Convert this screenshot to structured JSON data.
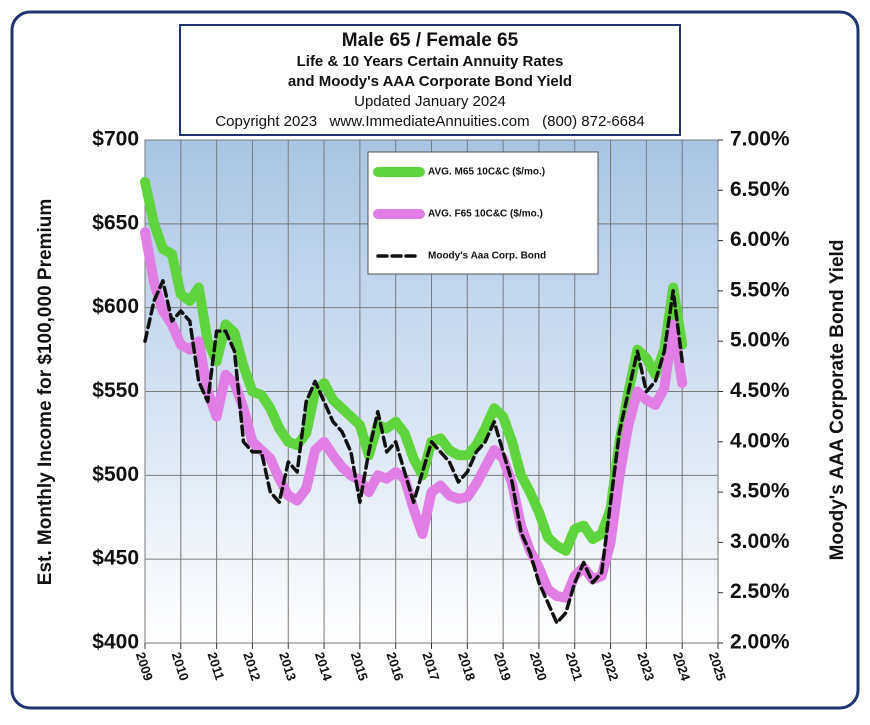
{
  "chart_data": {
    "type": "line",
    "title": "Male 65 / Female 65",
    "subtitle": [
      "Life & 10 Years Certain Annuity Rates",
      "and Moody's AAA Corporate Bond Yield",
      "Updated January 2024"
    ],
    "copyright": "Copyright 2023   www.ImmediateAnnuities.com   (800) 872-6684",
    "ylabel": "Est. Monthly Income for $100,000 Premium",
    "y2label": "Moody's AAA Corporate Bond Yield",
    "xlim": [
      2009,
      2025
    ],
    "xticks": [
      2009,
      2010,
      2011,
      2012,
      2013,
      2014,
      2015,
      2016,
      2017,
      2018,
      2019,
      2020,
      2021,
      2022,
      2023,
      2024,
      2025
    ],
    "ylim": [
      400,
      700
    ],
    "yticks": [
      {
        "value": 400,
        "label": "$400"
      },
      {
        "value": 450,
        "label": "$450"
      },
      {
        "value": 500,
        "label": "$500"
      },
      {
        "value": 550,
        "label": "$550"
      },
      {
        "value": 600,
        "label": "$600"
      },
      {
        "value": 650,
        "label": "$650"
      },
      {
        "value": 700,
        "label": "$700"
      }
    ],
    "y2lim": [
      2,
      7
    ],
    "y2ticks": [
      {
        "value": 2,
        "label": "2.00%"
      },
      {
        "value": 2.5,
        "label": "2.50%"
      },
      {
        "value": 3,
        "label": "3.00%"
      },
      {
        "value": 3.5,
        "label": "3.50%"
      },
      {
        "value": 4,
        "label": "4.00%"
      },
      {
        "value": 4.5,
        "label": "4.50%"
      },
      {
        "value": 5,
        "label": "5.00%"
      },
      {
        "value": 5.5,
        "label": "5.50%"
      },
      {
        "value": 6,
        "label": "6.00%"
      },
      {
        "value": 6.5,
        "label": "6.50%"
      },
      {
        "value": 7,
        "label": "7.00%"
      }
    ],
    "grid": true,
    "legend": "top",
    "x": [
      2009,
      2009.25,
      2009.5,
      2009.75,
      2010,
      2010.25,
      2010.5,
      2010.75,
      2011,
      2011.25,
      2011.5,
      2011.75,
      2012,
      2012.25,
      2012.5,
      2012.75,
      2013,
      2013.25,
      2013.5,
      2013.75,
      2014,
      2014.25,
      2014.5,
      2014.75,
      2015,
      2015.25,
      2015.5,
      2015.75,
      2016,
      2016.25,
      2016.5,
      2016.75,
      2017,
      2017.25,
      2017.5,
      2017.75,
      2018,
      2018.25,
      2018.5,
      2018.75,
      2019,
      2019.25,
      2019.5,
      2019.75,
      2020,
      2020.25,
      2020.5,
      2020.75,
      2021,
      2021.25,
      2021.5,
      2021.75,
      2022,
      2022.25,
      2022.5,
      2022.75,
      2023,
      2023.25,
      2023.5,
      2023.75,
      2024
    ],
    "series": [
      {
        "name": "AVG. M65 10C&C ($/mo.)",
        "color": "#5fd43c",
        "width": 10,
        "values": [
          675,
          650,
          635,
          632,
          608,
          604,
          612,
          580,
          568,
          590,
          585,
          565,
          550,
          548,
          540,
          528,
          520,
          518,
          525,
          550,
          555,
          545,
          540,
          535,
          530,
          512,
          530,
          528,
          532,
          525,
          510,
          500,
          520,
          522,
          515,
          512,
          512,
          518,
          528,
          540,
          535,
          520,
          500,
          490,
          478,
          463,
          458,
          455,
          468,
          470,
          462,
          465,
          480,
          520,
          550,
          575,
          570,
          560,
          575,
          612,
          578
        ]
      },
      {
        "name": "AVG. F65 10C&C ($/mo.)",
        "color": "#e07ee6",
        "width": 10,
        "values": [
          645,
          615,
          598,
          590,
          578,
          575,
          580,
          550,
          535,
          560,
          555,
          540,
          520,
          515,
          510,
          498,
          488,
          485,
          492,
          515,
          520,
          512,
          505,
          500,
          497,
          490,
          500,
          498,
          502,
          498,
          480,
          465,
          490,
          494,
          488,
          486,
          487,
          495,
          505,
          515,
          510,
          495,
          470,
          455,
          445,
          432,
          428,
          427,
          440,
          445,
          438,
          440,
          460,
          500,
          530,
          550,
          545,
          542,
          552,
          590,
          555
        ]
      },
      {
        "name": "Moody's Aaa Corp. Bond",
        "color": "#111111",
        "width": 3.5,
        "dash": true,
        "axis": "y2",
        "values": [
          5.0,
          5.4,
          5.6,
          5.2,
          5.3,
          5.2,
          4.6,
          4.4,
          5.1,
          5.1,
          4.9,
          4.0,
          3.9,
          3.9,
          3.5,
          3.4,
          3.8,
          3.7,
          4.4,
          4.6,
          4.4,
          4.2,
          4.1,
          3.9,
          3.4,
          3.9,
          4.3,
          3.9,
          4.0,
          3.7,
          3.4,
          3.7,
          4.0,
          3.9,
          3.8,
          3.6,
          3.7,
          3.9,
          4.0,
          4.2,
          3.9,
          3.6,
          3.1,
          2.9,
          2.6,
          2.4,
          2.2,
          2.3,
          2.6,
          2.8,
          2.6,
          2.7,
          3.4,
          4.1,
          4.5,
          4.9,
          4.5,
          4.6,
          4.9,
          5.5,
          4.8
        ]
      }
    ]
  }
}
